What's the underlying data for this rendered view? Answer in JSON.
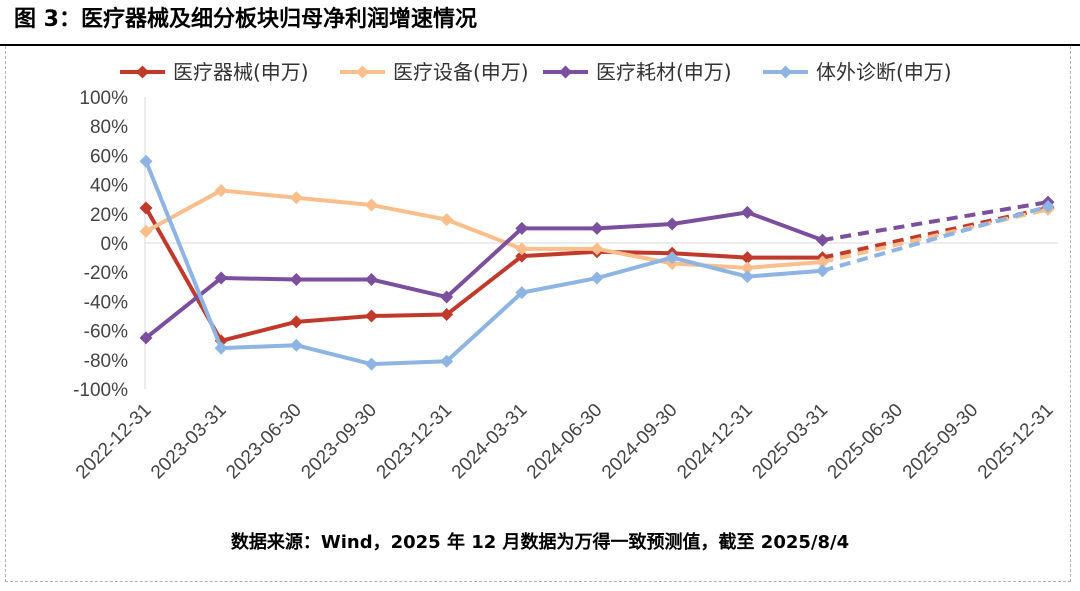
{
  "figure": {
    "title": "图 3：医疗器械及细分板块归母净利润增速情况",
    "source_note": "数据来源：Wind，2025 年 12 月数据为万得一致预测值，截至 2025/8/4"
  },
  "chart_data": {
    "type": "line",
    "title": "",
    "xlabel": "",
    "ylabel": "",
    "ylim": [
      -100,
      100
    ],
    "y_step": 20,
    "y_tick_format": "percent",
    "legend_position": "top",
    "grid": false,
    "categories": [
      "2022-12-31",
      "2023-03-31",
      "2023-06-30",
      "2023-09-30",
      "2023-12-31",
      "2024-03-31",
      "2024-06-30",
      "2024-09-30",
      "2024-12-31",
      "2025-03-31",
      "2025-06-30",
      "2025-09-30",
      "2025-12-31"
    ],
    "forecast_start_index": 9,
    "series": [
      {
        "name": "医疗器械(申万)",
        "color": "#C0392B",
        "values": [
          24,
          -67,
          -54,
          -50,
          -49,
          -9,
          -6,
          -7,
          -10,
          -10,
          null,
          null,
          24
        ]
      },
      {
        "name": "医疗设备(申万)",
        "color": "#F9BE8B",
        "values": [
          8,
          36,
          31,
          26,
          16,
          -4,
          -4,
          -14,
          -17,
          -13,
          null,
          null,
          23
        ]
      },
      {
        "name": "医疗耗材(申万)",
        "color": "#7B4E9E",
        "values": [
          -65,
          -24,
          -25,
          -25,
          -37,
          10,
          10,
          13,
          21,
          2,
          null,
          null,
          28
        ]
      },
      {
        "name": "体外诊断(申万)",
        "color": "#8DB4E2",
        "values": [
          56,
          -72,
          -70,
          -83,
          -81,
          -34,
          -24,
          -10,
          -23,
          -19,
          null,
          null,
          25
        ]
      }
    ]
  }
}
